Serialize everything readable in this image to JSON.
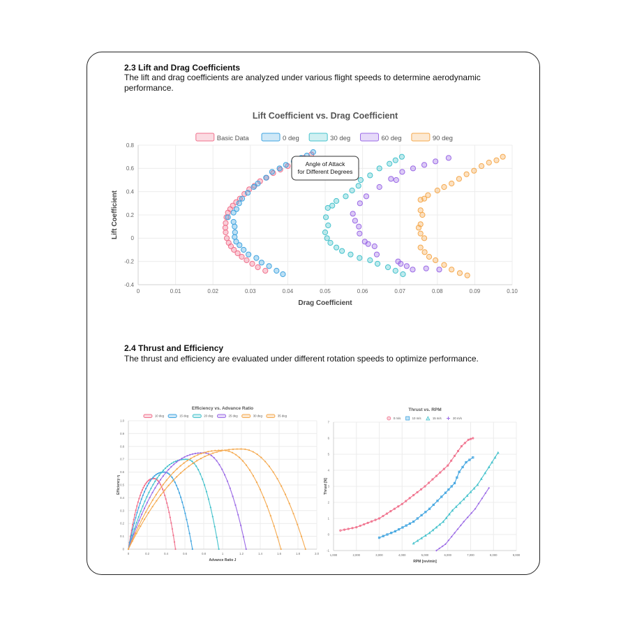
{
  "sections": [
    {
      "heading": "2.3 Lift and Drag Coefficients",
      "text": "The lift and drag coefficients are analyzed under various flight speeds to determine aerodynamic performance."
    },
    {
      "heading": "2.4 Thrust and Efficiency",
      "text": "The thrust and efficiency are evaluated under different rotation speeds to optimize performance."
    }
  ],
  "chart_data": [
    {
      "type": "scatter",
      "title": "Lift Coefficient vs. Drag Coefficient",
      "xlabel": "Drag Coefficient",
      "ylabel": "Lift Coefficient",
      "xlim": [
        0,
        0.1
      ],
      "ylim": [
        -0.4,
        0.8
      ],
      "x_ticks": [
        "0",
        "0.01",
        "0.02",
        "0.03",
        "0.04",
        "0.05",
        "0.06",
        "0.07",
        "0.08",
        "0.09",
        "0.10"
      ],
      "y_ticks": [
        "-0.4",
        "-0.2",
        "0",
        "0.2",
        "0.4",
        "0.6",
        "0.8"
      ],
      "legend_position": "top",
      "grid": true,
      "annotation": "Angle of Attack\nfor Different Degrees",
      "series": [
        {
          "name": "Basic Data",
          "color": "#f0708c",
          "points": [
            [
              0.034,
              -0.28
            ],
            [
              0.032,
              -0.25
            ],
            [
              0.0305,
              -0.22
            ],
            [
              0.029,
              -0.19
            ],
            [
              0.0277,
              -0.16
            ],
            [
              0.0266,
              -0.13
            ],
            [
              0.0256,
              -0.1
            ],
            [
              0.0248,
              -0.07
            ],
            [
              0.0242,
              -0.04
            ],
            [
              0.0237,
              0.0
            ],
            [
              0.0234,
              0.05
            ],
            [
              0.0233,
              0.09
            ],
            [
              0.0234,
              0.13
            ],
            [
              0.0236,
              0.18
            ],
            [
              0.024,
              0.22
            ],
            [
              0.0246,
              0.25
            ],
            [
              0.0253,
              0.28
            ],
            [
              0.0262,
              0.31
            ],
            [
              0.0272,
              0.34
            ],
            [
              0.0284,
              0.38
            ],
            [
              0.0297,
              0.42
            ],
            [
              0.0311,
              0.45
            ],
            [
              0.0326,
              0.49
            ],
            [
              0.0343,
              0.52
            ],
            [
              0.0361,
              0.56
            ],
            [
              0.038,
              0.59
            ],
            [
              0.04,
              0.62
            ],
            [
              0.0421,
              0.65
            ],
            [
              0.0443,
              0.69
            ],
            [
              0.0463,
              0.72
            ]
          ]
        },
        {
          "name": "0 deg",
          "color": "#3fa4e0",
          "points": [
            [
              0.0387,
              -0.31
            ],
            [
              0.037,
              -0.28
            ],
            [
              0.035,
              -0.24
            ],
            [
              0.033,
              -0.21
            ],
            [
              0.0316,
              -0.17
            ],
            [
              0.0295,
              -0.14
            ],
            [
              0.0282,
              -0.1
            ],
            [
              0.0271,
              -0.06
            ],
            [
              0.0262,
              -0.03
            ],
            [
              0.0258,
              0.01
            ],
            [
              0.0259,
              0.05
            ],
            [
              0.0258,
              0.1
            ],
            [
              0.0255,
              0.14
            ],
            [
              0.024,
              0.18
            ],
            [
              0.0255,
              0.22
            ],
            [
              0.0263,
              0.25
            ],
            [
              0.027,
              0.3
            ],
            [
              0.0278,
              0.34
            ],
            [
              0.0293,
              0.39
            ],
            [
              0.0309,
              0.44
            ],
            [
              0.032,
              0.47
            ],
            [
              0.0342,
              0.52
            ],
            [
              0.0358,
              0.57
            ],
            [
              0.0378,
              0.6
            ],
            [
              0.0395,
              0.63
            ],
            [
              0.0416,
              0.66
            ],
            [
              0.0436,
              0.69
            ],
            [
              0.0451,
              0.71
            ],
            [
              0.0468,
              0.74
            ]
          ]
        },
        {
          "name": "30 deg",
          "color": "#44c2cc",
          "points": [
            [
              0.0708,
              -0.31
            ],
            [
              0.0688,
              -0.28
            ],
            [
              0.0668,
              -0.25
            ],
            [
              0.064,
              -0.22
            ],
            [
              0.062,
              -0.19
            ],
            [
              0.0592,
              -0.17
            ],
            [
              0.0568,
              -0.14
            ],
            [
              0.0545,
              -0.11
            ],
            [
              0.053,
              -0.08
            ],
            [
              0.0514,
              -0.04
            ],
            [
              0.0505,
              0.0
            ],
            [
              0.05,
              0.05
            ],
            [
              0.0508,
              0.11
            ],
            [
              0.0502,
              0.18
            ],
            [
              0.0507,
              0.26
            ],
            [
              0.0519,
              0.28
            ],
            [
              0.053,
              0.32
            ],
            [
              0.0555,
              0.36
            ],
            [
              0.0572,
              0.41
            ],
            [
              0.0589,
              0.45
            ],
            [
              0.0595,
              0.5
            ],
            [
              0.062,
              0.54
            ],
            [
              0.0645,
              0.6
            ],
            [
              0.0672,
              0.64
            ],
            [
              0.0688,
              0.67
            ],
            [
              0.0705,
              0.7
            ]
          ]
        },
        {
          "name": "60 deg",
          "color": "#9b6ae6",
          "points": [
            [
              0.0805,
              -0.27
            ],
            [
              0.077,
              -0.26
            ],
            [
              0.0734,
              -0.27
            ],
            [
              0.0718,
              -0.24
            ],
            [
              0.0702,
              -0.22
            ],
            [
              0.0695,
              -0.2
            ],
            [
              0.0638,
              -0.14
            ],
            [
              0.0632,
              -0.07
            ],
            [
              0.0615,
              -0.05
            ],
            [
              0.0606,
              -0.03
            ],
            [
              0.0592,
              0.04
            ],
            [
              0.059,
              0.1
            ],
            [
              0.058,
              0.15
            ],
            [
              0.0574,
              0.21
            ],
            [
              0.0593,
              0.3
            ],
            [
              0.061,
              0.36
            ],
            [
              0.0645,
              0.44
            ],
            [
              0.069,
              0.5
            ],
            [
              0.0676,
              0.51
            ],
            [
              0.0706,
              0.57
            ],
            [
              0.0735,
              0.6
            ],
            [
              0.0765,
              0.63
            ],
            [
              0.0795,
              0.66
            ],
            [
              0.083,
              0.69
            ]
          ]
        },
        {
          "name": "90 deg",
          "color": "#f5a94e",
          "points": [
            [
              0.088,
              -0.32
            ],
            [
              0.086,
              -0.3
            ],
            [
              0.0838,
              -0.27
            ],
            [
              0.0818,
              -0.23
            ],
            [
              0.0795,
              -0.19
            ],
            [
              0.0778,
              -0.16
            ],
            [
              0.0766,
              -0.12
            ],
            [
              0.0755,
              -0.08
            ],
            [
              0.0765,
              0.0
            ],
            [
              0.0755,
              0.04
            ],
            [
              0.075,
              0.09
            ],
            [
              0.0755,
              0.12
            ],
            [
              0.076,
              0.2
            ],
            [
              0.0755,
              0.24
            ],
            [
              0.0755,
              0.33
            ],
            [
              0.0765,
              0.34
            ],
            [
              0.0775,
              0.37
            ],
            [
              0.08,
              0.41
            ],
            [
              0.0818,
              0.44
            ],
            [
              0.0838,
              0.47
            ],
            [
              0.0858,
              0.51
            ],
            [
              0.0878,
              0.55
            ],
            [
              0.0898,
              0.58
            ],
            [
              0.0918,
              0.62
            ],
            [
              0.0938,
              0.65
            ],
            [
              0.0958,
              0.67
            ],
            [
              0.0975,
              0.7
            ]
          ]
        }
      ]
    },
    {
      "type": "line",
      "title": "Efficiency vs. Advance Ratio",
      "xlabel": "Advance Ratio J",
      "ylabel": "Efficiency η",
      "xlim": [
        0,
        2.0
      ],
      "ylim": [
        0,
        1.0
      ],
      "x_ticks": [
        "0",
        "0.2",
        "0.4",
        "0.6",
        "0.8",
        "1",
        "1.2",
        "1.4",
        "1.6",
        "1.8",
        "2.0"
      ],
      "y_ticks": [
        "0",
        "0.1",
        "0.2",
        "0.3",
        "0.4",
        "0.5",
        "0.6",
        "0.7",
        "0.8",
        "0.9",
        "1.0"
      ],
      "legend_position": "top",
      "grid": true,
      "series": [
        {
          "name": "10 deg",
          "color": "#f0708c",
          "jmax": 0.5,
          "peak_j": 0.27,
          "peak": 0.55
        },
        {
          "name": "15 deg",
          "color": "#3fa4e0",
          "jmax": 0.68,
          "peak_j": 0.38,
          "peak": 0.6
        },
        {
          "name": "20 deg",
          "color": "#44c2cc",
          "jmax": 0.96,
          "peak_j": 0.62,
          "peak": 0.7
        },
        {
          "name": "25 deg",
          "color": "#9b6ae6",
          "jmax": 1.25,
          "peak_j": 0.8,
          "peak": 0.75
        },
        {
          "name": "30 deg",
          "color": "#f5a94e",
          "jmax": 1.62,
          "peak_j": 1.0,
          "peak": 0.77
        },
        {
          "name": "35 deg",
          "color": "#f5a94e",
          "jmax": 1.88,
          "peak_j": 1.2,
          "peak": 0.78
        }
      ]
    },
    {
      "type": "line",
      "title": "Thrust vs. RPM",
      "xlabel": "RPM [rev/min]",
      "ylabel": "Thrust [N]",
      "xlim": [
        1000,
        9000
      ],
      "ylim": [
        -1,
        7
      ],
      "x_ticks": [
        "1,000",
        "2,000",
        "3,000",
        "4,000",
        "5,000",
        "6,000",
        "7,000",
        "8,000",
        "9,000"
      ],
      "y_ticks": [
        "-1",
        "0",
        "1",
        "2",
        "3",
        "4",
        "5",
        "6",
        "7"
      ],
      "legend_position": "top",
      "grid": true,
      "series": [
        {
          "name": "0 m/s",
          "color": "#f0708c",
          "marker": "circle",
          "points": [
            [
              1300,
              0.25
            ],
            [
              2000,
              0.45
            ],
            [
              3000,
              1.0
            ],
            [
              4000,
              1.9
            ],
            [
              5000,
              3.0
            ],
            [
              6000,
              4.3
            ],
            [
              6600,
              5.5
            ],
            [
              6900,
              5.9
            ],
            [
              7100,
              6.0
            ]
          ]
        },
        {
          "name": "10 m/s",
          "color": "#3fa4e0",
          "marker": "square",
          "points": [
            [
              3000,
              -0.2
            ],
            [
              3700,
              0.2
            ],
            [
              4500,
              0.8
            ],
            [
              5200,
              1.6
            ],
            [
              5900,
              2.6
            ],
            [
              6300,
              3.2
            ],
            [
              6500,
              3.9
            ],
            [
              6800,
              4.5
            ],
            [
              7100,
              4.8
            ]
          ]
        },
        {
          "name": "15 m/s",
          "color": "#44c2cc",
          "marker": "triangle",
          "points": [
            [
              4500,
              -0.55
            ],
            [
              5200,
              0.1
            ],
            [
              5800,
              0.8
            ],
            [
              6200,
              1.5
            ],
            [
              6700,
              2.2
            ],
            [
              7300,
              3.1
            ],
            [
              7800,
              4.2
            ],
            [
              8200,
              5.1
            ]
          ]
        },
        {
          "name": "20 m/s",
          "color": "#9b6ae6",
          "marker": "star",
          "points": [
            [
              5500,
              -1.0
            ],
            [
              5900,
              -0.6
            ],
            [
              6300,
              0.1
            ],
            [
              6700,
              0.8
            ],
            [
              7200,
              1.6
            ],
            [
              7800,
              2.9
            ]
          ]
        }
      ]
    }
  ]
}
